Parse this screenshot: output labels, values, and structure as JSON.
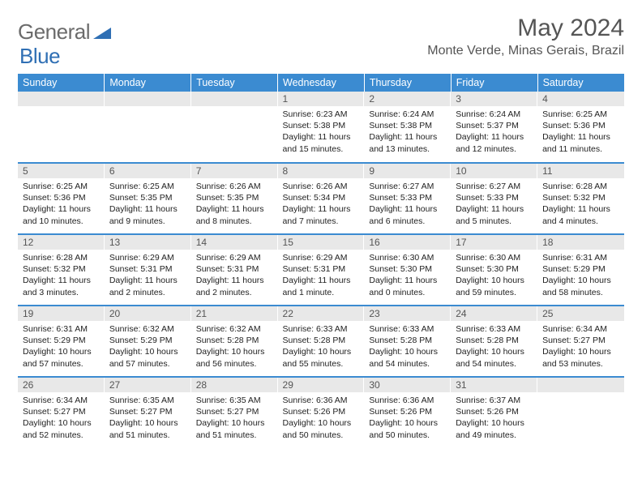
{
  "logo": {
    "part1": "General",
    "part2": "Blue"
  },
  "title": "May 2024",
  "location": "Monte Verde, Minas Gerais, Brazil",
  "colors": {
    "header_bg": "#3b8bd1",
    "header_text": "#ffffff",
    "daynum_bg": "#e8e8e8",
    "daynum_text": "#555555",
    "border": "#3b8bd1",
    "logo_gray": "#6b6b6b",
    "logo_blue": "#2f6fb4"
  },
  "typography": {
    "title_fontsize": 30,
    "location_fontsize": 16,
    "header_fontsize": 12.5,
    "daynum_fontsize": 12,
    "body_fontsize": 10.5
  },
  "weekdays": [
    "Sunday",
    "Monday",
    "Tuesday",
    "Wednesday",
    "Thursday",
    "Friday",
    "Saturday"
  ],
  "weeks": [
    [
      {
        "day": "",
        "sunrise": "",
        "sunset": "",
        "daylight": ""
      },
      {
        "day": "",
        "sunrise": "",
        "sunset": "",
        "daylight": ""
      },
      {
        "day": "",
        "sunrise": "",
        "sunset": "",
        "daylight": ""
      },
      {
        "day": "1",
        "sunrise": "Sunrise: 6:23 AM",
        "sunset": "Sunset: 5:38 PM",
        "daylight": "Daylight: 11 hours and 15 minutes."
      },
      {
        "day": "2",
        "sunrise": "Sunrise: 6:24 AM",
        "sunset": "Sunset: 5:38 PM",
        "daylight": "Daylight: 11 hours and 13 minutes."
      },
      {
        "day": "3",
        "sunrise": "Sunrise: 6:24 AM",
        "sunset": "Sunset: 5:37 PM",
        "daylight": "Daylight: 11 hours and 12 minutes."
      },
      {
        "day": "4",
        "sunrise": "Sunrise: 6:25 AM",
        "sunset": "Sunset: 5:36 PM",
        "daylight": "Daylight: 11 hours and 11 minutes."
      }
    ],
    [
      {
        "day": "5",
        "sunrise": "Sunrise: 6:25 AM",
        "sunset": "Sunset: 5:36 PM",
        "daylight": "Daylight: 11 hours and 10 minutes."
      },
      {
        "day": "6",
        "sunrise": "Sunrise: 6:25 AM",
        "sunset": "Sunset: 5:35 PM",
        "daylight": "Daylight: 11 hours and 9 minutes."
      },
      {
        "day": "7",
        "sunrise": "Sunrise: 6:26 AM",
        "sunset": "Sunset: 5:35 PM",
        "daylight": "Daylight: 11 hours and 8 minutes."
      },
      {
        "day": "8",
        "sunrise": "Sunrise: 6:26 AM",
        "sunset": "Sunset: 5:34 PM",
        "daylight": "Daylight: 11 hours and 7 minutes."
      },
      {
        "day": "9",
        "sunrise": "Sunrise: 6:27 AM",
        "sunset": "Sunset: 5:33 PM",
        "daylight": "Daylight: 11 hours and 6 minutes."
      },
      {
        "day": "10",
        "sunrise": "Sunrise: 6:27 AM",
        "sunset": "Sunset: 5:33 PM",
        "daylight": "Daylight: 11 hours and 5 minutes."
      },
      {
        "day": "11",
        "sunrise": "Sunrise: 6:28 AM",
        "sunset": "Sunset: 5:32 PM",
        "daylight": "Daylight: 11 hours and 4 minutes."
      }
    ],
    [
      {
        "day": "12",
        "sunrise": "Sunrise: 6:28 AM",
        "sunset": "Sunset: 5:32 PM",
        "daylight": "Daylight: 11 hours and 3 minutes."
      },
      {
        "day": "13",
        "sunrise": "Sunrise: 6:29 AM",
        "sunset": "Sunset: 5:31 PM",
        "daylight": "Daylight: 11 hours and 2 minutes."
      },
      {
        "day": "14",
        "sunrise": "Sunrise: 6:29 AM",
        "sunset": "Sunset: 5:31 PM",
        "daylight": "Daylight: 11 hours and 2 minutes."
      },
      {
        "day": "15",
        "sunrise": "Sunrise: 6:29 AM",
        "sunset": "Sunset: 5:31 PM",
        "daylight": "Daylight: 11 hours and 1 minute."
      },
      {
        "day": "16",
        "sunrise": "Sunrise: 6:30 AM",
        "sunset": "Sunset: 5:30 PM",
        "daylight": "Daylight: 11 hours and 0 minutes."
      },
      {
        "day": "17",
        "sunrise": "Sunrise: 6:30 AM",
        "sunset": "Sunset: 5:30 PM",
        "daylight": "Daylight: 10 hours and 59 minutes."
      },
      {
        "day": "18",
        "sunrise": "Sunrise: 6:31 AM",
        "sunset": "Sunset: 5:29 PM",
        "daylight": "Daylight: 10 hours and 58 minutes."
      }
    ],
    [
      {
        "day": "19",
        "sunrise": "Sunrise: 6:31 AM",
        "sunset": "Sunset: 5:29 PM",
        "daylight": "Daylight: 10 hours and 57 minutes."
      },
      {
        "day": "20",
        "sunrise": "Sunrise: 6:32 AM",
        "sunset": "Sunset: 5:29 PM",
        "daylight": "Daylight: 10 hours and 57 minutes."
      },
      {
        "day": "21",
        "sunrise": "Sunrise: 6:32 AM",
        "sunset": "Sunset: 5:28 PM",
        "daylight": "Daylight: 10 hours and 56 minutes."
      },
      {
        "day": "22",
        "sunrise": "Sunrise: 6:33 AM",
        "sunset": "Sunset: 5:28 PM",
        "daylight": "Daylight: 10 hours and 55 minutes."
      },
      {
        "day": "23",
        "sunrise": "Sunrise: 6:33 AM",
        "sunset": "Sunset: 5:28 PM",
        "daylight": "Daylight: 10 hours and 54 minutes."
      },
      {
        "day": "24",
        "sunrise": "Sunrise: 6:33 AM",
        "sunset": "Sunset: 5:28 PM",
        "daylight": "Daylight: 10 hours and 54 minutes."
      },
      {
        "day": "25",
        "sunrise": "Sunrise: 6:34 AM",
        "sunset": "Sunset: 5:27 PM",
        "daylight": "Daylight: 10 hours and 53 minutes."
      }
    ],
    [
      {
        "day": "26",
        "sunrise": "Sunrise: 6:34 AM",
        "sunset": "Sunset: 5:27 PM",
        "daylight": "Daylight: 10 hours and 52 minutes."
      },
      {
        "day": "27",
        "sunrise": "Sunrise: 6:35 AM",
        "sunset": "Sunset: 5:27 PM",
        "daylight": "Daylight: 10 hours and 51 minutes."
      },
      {
        "day": "28",
        "sunrise": "Sunrise: 6:35 AM",
        "sunset": "Sunset: 5:27 PM",
        "daylight": "Daylight: 10 hours and 51 minutes."
      },
      {
        "day": "29",
        "sunrise": "Sunrise: 6:36 AM",
        "sunset": "Sunset: 5:26 PM",
        "daylight": "Daylight: 10 hours and 50 minutes."
      },
      {
        "day": "30",
        "sunrise": "Sunrise: 6:36 AM",
        "sunset": "Sunset: 5:26 PM",
        "daylight": "Daylight: 10 hours and 50 minutes."
      },
      {
        "day": "31",
        "sunrise": "Sunrise: 6:37 AM",
        "sunset": "Sunset: 5:26 PM",
        "daylight": "Daylight: 10 hours and 49 minutes."
      },
      {
        "day": "",
        "sunrise": "",
        "sunset": "",
        "daylight": ""
      }
    ]
  ]
}
